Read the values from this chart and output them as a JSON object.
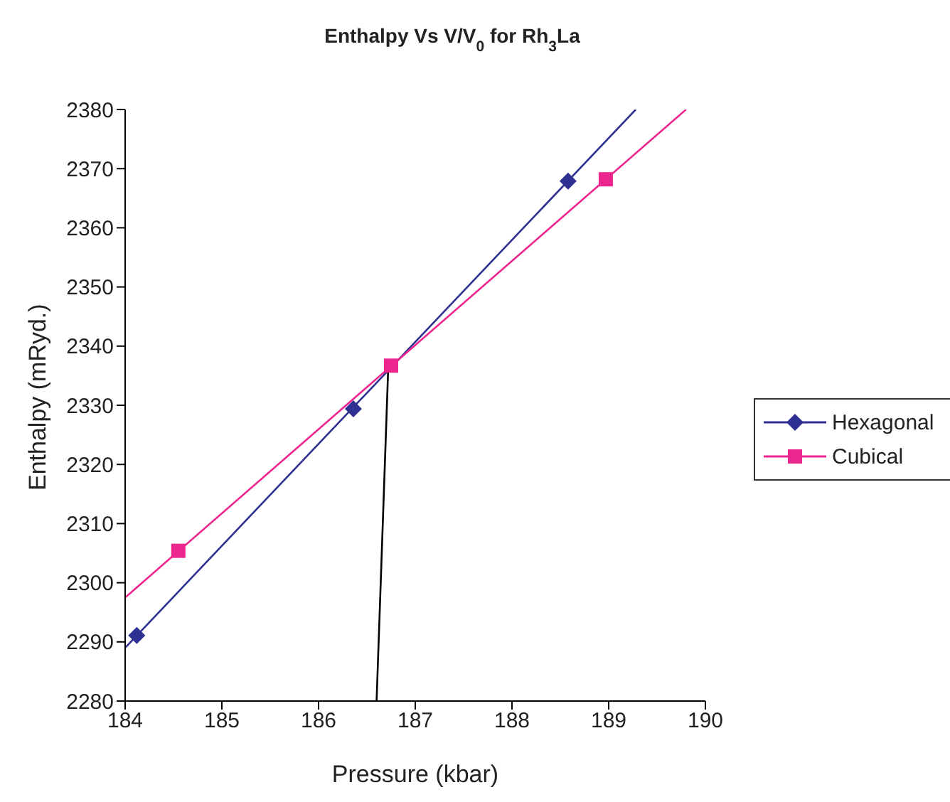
{
  "chart_data": {
    "type": "scatter",
    "title": "Enthalpy Vs V/V$_{0}$ for Rh$_{3}$La",
    "xlabel": "Pressure (kbar)",
    "ylabel": "Enthalpy (mRyd.)",
    "xlim": [
      184,
      190
    ],
    "xticks": [
      184,
      185,
      186,
      187,
      188,
      189,
      190
    ],
    "ylim": [
      2280,
      2380
    ],
    "yticks": [
      2280,
      2290,
      2300,
      2310,
      2320,
      2330,
      2340,
      2350,
      2360,
      2370,
      2380
    ],
    "grid": false,
    "legend": "right",
    "series": [
      {
        "name": "Hexagonal",
        "marker": "diamond",
        "color": "#2e3192",
        "x": [
          184.12,
          186.36,
          188.58
        ],
        "values": [
          2291.1,
          2329.4,
          2367.9
        ]
      },
      {
        "name": "Cubical",
        "marker": "square",
        "color": "#ec268f",
        "x": [
          184.55,
          186.75,
          188.97
        ],
        "values": [
          2305.4,
          2336.7,
          2368.2
        ]
      },
      {
        "type": "line",
        "marker": "none",
        "color": "#2e3192",
        "x": [
          184,
          189.28
        ],
        "values": [
          2289,
          2380
        ]
      },
      {
        "type": "line",
        "marker": "none",
        "color": "#ec268f",
        "x": [
          184,
          189.8
        ],
        "values": [
          2297.5,
          2380
        ]
      },
      {
        "type": "line",
        "marker": "none",
        "color": "#000000",
        "x": [
          186.6,
          186.72
        ],
        "values": [
          2280,
          2336.2
        ]
      }
    ]
  }
}
